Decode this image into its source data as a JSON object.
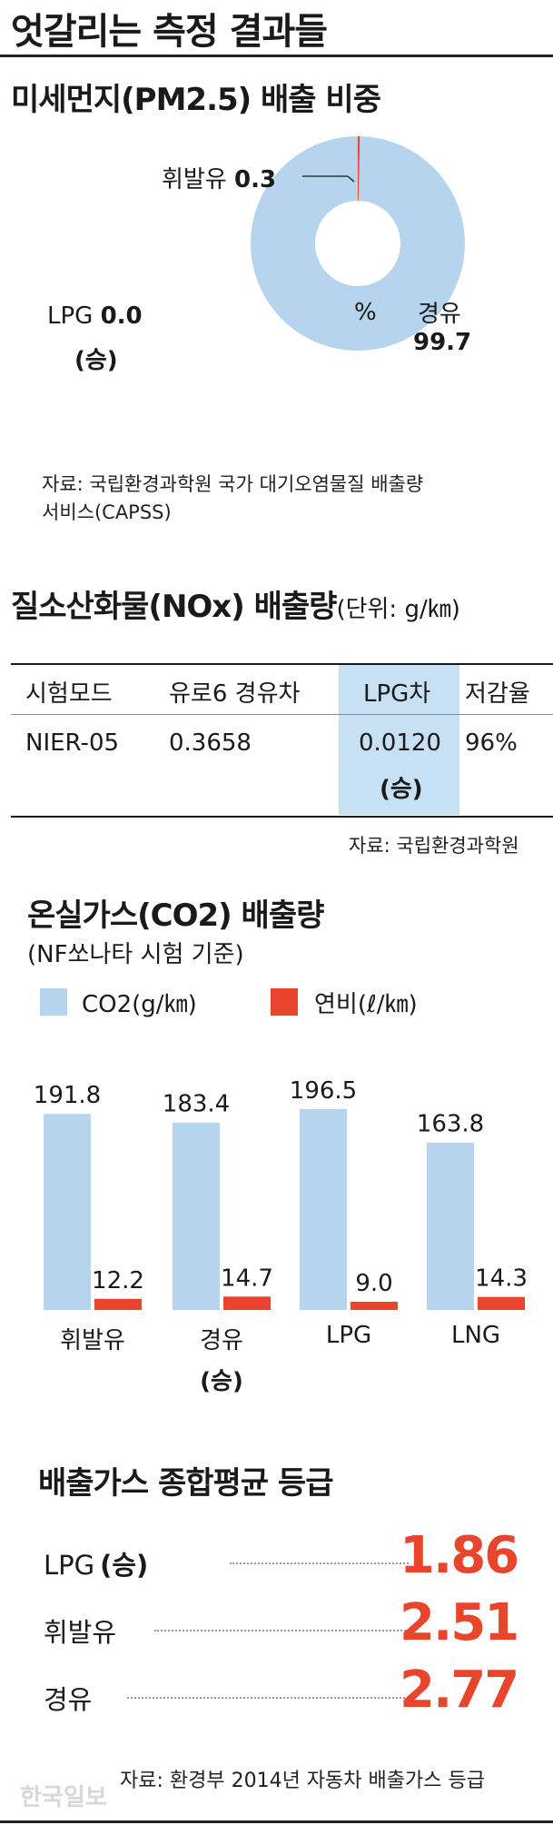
{
  "main_title": "엇갈리는 측정 결과들",
  "pm": {
    "title": "미세먼지(PM2.5) 배출 비중",
    "center_label": "%",
    "source_line1": "자료: 국립환경과학원 국가 대기오염물질 배출량",
    "source_line2": "서비스(CAPSS)",
    "labels": {
      "gasoline": {
        "name": "휘발유",
        "value": "0.3"
      },
      "diesel": {
        "name": "경유",
        "value": "99.7"
      },
      "lpg": {
        "name": "LPG",
        "value": "0.0",
        "note": "(승)"
      }
    },
    "colors": {
      "diesel": "#b6d4ee",
      "gasoline": "#e8452c"
    }
  },
  "nox": {
    "title": "질소산화물(NOx) 배출량",
    "unit": "(단위: g/㎞)",
    "headers": [
      "시험모드",
      "유로6 경유차",
      "LPG차",
      "저감율"
    ],
    "row": [
      "NIER-05",
      "0.3658",
      "0.0120",
      "96%"
    ],
    "row_note": "(승)",
    "source": "자료: 국립환경과학원"
  },
  "co2": {
    "title": "온실가스(CO2) 배출량",
    "subtitle": "(NF쏘나타 시험 기준)",
    "legend": {
      "co2": "CO2(g/㎞)",
      "fuel": "연비(ℓ/㎞)"
    },
    "colors": {
      "co2": "#b6d4ee",
      "fuel": "#e8452c"
    },
    "category_notes": [
      "",
      "(승)",
      "",
      ""
    ]
  },
  "chart_data": [
    {
      "type": "pie",
      "title": "미세먼지(PM2.5) 배출 비중",
      "categories": [
        "경유",
        "휘발유",
        "LPG"
      ],
      "values": [
        99.7,
        0.3,
        0.0
      ],
      "unit": "%"
    },
    {
      "type": "bar",
      "title": "온실가스(CO2) 배출량",
      "categories": [
        "휘발유",
        "경유",
        "LPG",
        "LNG"
      ],
      "series": [
        {
          "name": "CO2(g/㎞)",
          "values": [
            191.8,
            183.4,
            196.5,
            163.8
          ]
        },
        {
          "name": "연비(ℓ/㎞)",
          "values": [
            12.2,
            14.7,
            9.0,
            14.3
          ]
        }
      ],
      "ylim": [
        0,
        200
      ]
    },
    {
      "type": "table",
      "title": "배출가스 종합평균 등급",
      "rows": [
        {
          "label": "LPG",
          "note": "(승)",
          "value": "1.86"
        },
        {
          "label": "휘발유",
          "note": "",
          "value": "2.51"
        },
        {
          "label": "경유",
          "note": "",
          "value": "2.77"
        }
      ]
    }
  ],
  "grade": {
    "title": "배출가스 종합평균 등급",
    "source": "자료: 환경부 2014년 자동차 배출가스 등급"
  },
  "watermark": "한국일보"
}
